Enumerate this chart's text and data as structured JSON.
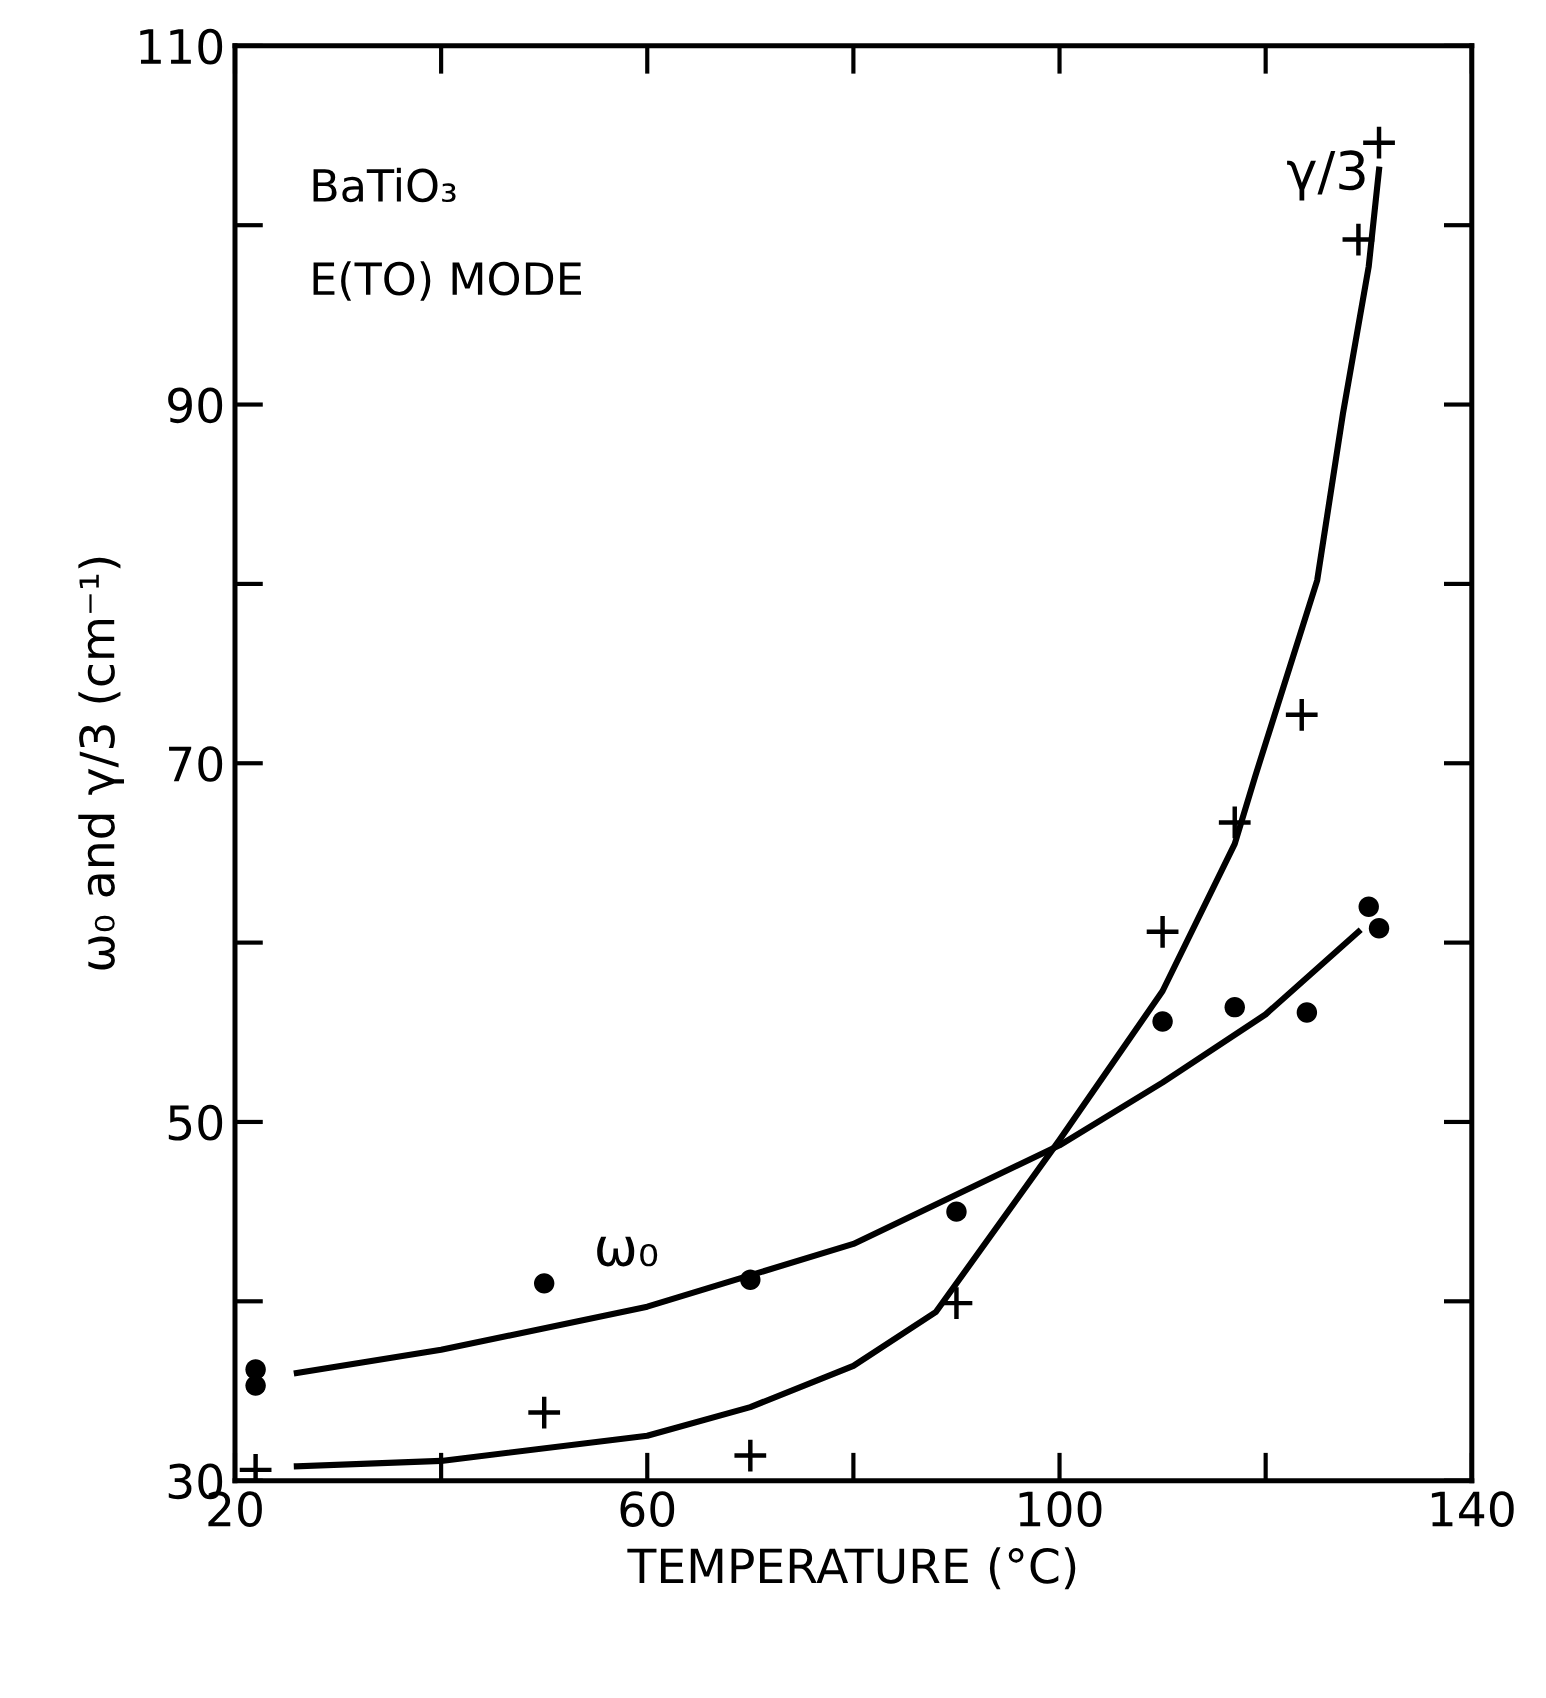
{
  "chart_data": {
    "type": "scatter",
    "xlabel": "TEMPERATURE (°C)",
    "ylabel": "ω₀ and γ/3 (cm⁻¹)",
    "xlim": [
      20,
      140
    ],
    "ylim": [
      30,
      110
    ],
    "xticks": [
      20,
      {
        "value": 40,
        "label": null
      },
      60,
      {
        "value": 80,
        "label": null
      },
      100,
      {
        "value": 120,
        "label": null
      },
      140
    ],
    "yticks": [
      30,
      {
        "value": 40,
        "label": null
      },
      50,
      {
        "value": 60,
        "label": null
      },
      70,
      {
        "value": 80,
        "label": null
      },
      90,
      {
        "value": 100,
        "label": null
      },
      110
    ],
    "grid": false,
    "legend": false,
    "series": [
      {
        "marker": "circle",
        "color": "#000000",
        "x": [
          22,
          22,
          50,
          70,
          90,
          110,
          117,
          124,
          130,
          131
        ],
        "values": [
          36.2,
          35.3,
          41,
          41.2,
          45,
          55.6,
          56.4,
          56.1,
          62,
          60.8
        ]
      },
      {
        "marker": "cross",
        "color": "#000000",
        "x": [
          22,
          50,
          70,
          90,
          110,
          117,
          123.5,
          129,
          131
        ],
        "values": [
          30.6,
          33.8,
          31.4,
          39.9,
          60.6,
          66.7,
          72.7,
          99.2,
          104.6
        ]
      },
      {
        "type": "line",
        "marker": "none",
        "line_style": "solid",
        "color": "#000000",
        "x": [
          26,
          40,
          60,
          80,
          100,
          110,
          120,
          129
        ],
        "values": [
          36,
          37.3,
          39.7,
          43.2,
          48.7,
          52.2,
          56,
          60.6
        ]
      },
      {
        "type": "line",
        "marker": "none",
        "line_style": "solid",
        "color": "#000000",
        "x": [
          26,
          40,
          60,
          70,
          80,
          88,
          100,
          110,
          117,
          119,
          125,
          127.5,
          130,
          131
        ],
        "values": [
          30.8,
          31.1,
          32.5,
          34.1,
          36.4,
          39.4,
          49,
          57.3,
          65.5,
          69.3,
          80.2,
          89.5,
          97.7,
          103.1
        ]
      }
    ],
    "annotations": [
      "BaTiO₃",
      "E(TO) MODE",
      "ω₀",
      "γ/3"
    ]
  }
}
